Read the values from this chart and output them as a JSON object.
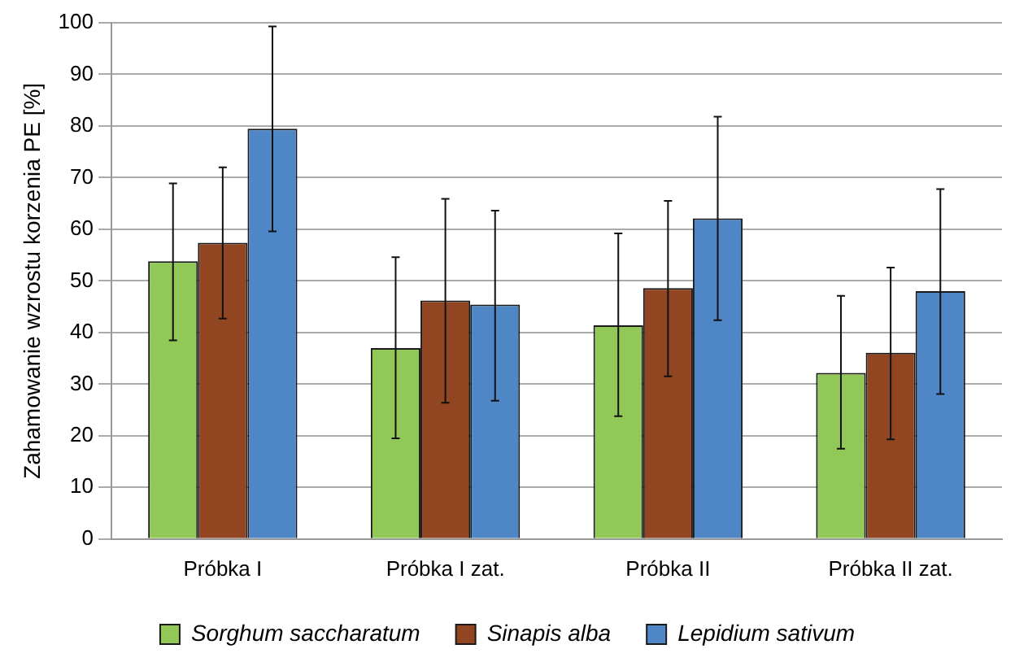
{
  "chart_data": {
    "type": "bar",
    "ylabel": "Zahamowanie wzrostu korzenia PE [%]",
    "categories": [
      "Próbka I",
      "Próbka I zat.",
      "Próbka II",
      "Próbka II zat."
    ],
    "series": [
      {
        "name": "Sorghum saccharatum",
        "color": "#92c857",
        "values": [
          53.8,
          37.0,
          41.4,
          32.2
        ],
        "errors": [
          [
            38.5,
            68.9
          ],
          [
            19.5,
            54.6
          ],
          [
            23.8,
            59.2
          ],
          [
            17.5,
            47.1
          ]
        ]
      },
      {
        "name": "Sinapis alba",
        "color": "#914520",
        "values": [
          57.4,
          46.2,
          48.6,
          36.1
        ],
        "errors": [
          [
            42.7,
            72.0
          ],
          [
            26.4,
            65.9
          ],
          [
            31.5,
            65.5
          ],
          [
            19.3,
            52.6
          ]
        ]
      },
      {
        "name": "Lepidium sativum",
        "color": "#4f86c6",
        "values": [
          79.5,
          45.4,
          62.1,
          48.0
        ],
        "errors": [
          [
            59.6,
            99.3
          ],
          [
            26.8,
            63.6
          ],
          [
            42.4,
            81.8
          ],
          [
            28.1,
            67.8
          ]
        ]
      }
    ],
    "ylim": [
      0,
      100
    ],
    "yticks": [
      0,
      10,
      20,
      30,
      40,
      50,
      60,
      70,
      80,
      90,
      100
    ],
    "grid": "y",
    "legend": "bottom"
  }
}
